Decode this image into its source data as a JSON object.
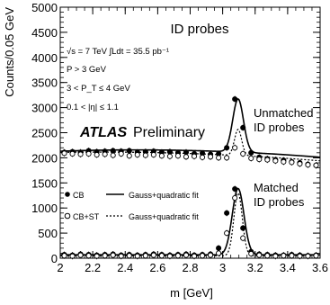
{
  "chart_data": {
    "type": "scatter",
    "title": "ID probes",
    "xlabel": "m [GeV]",
    "ylabel": "Counts/0.05 GeV",
    "xlim": [
      2.0,
      3.6
    ],
    "ylim": [
      0,
      5000
    ],
    "x_ticks": [
      "2",
      "2.2",
      "2.4",
      "2.6",
      "2.8",
      "3",
      "3.2",
      "3.4",
      "3.6"
    ],
    "y_ticks": [
      "0",
      "500",
      "1000",
      "1500",
      "2000",
      "2500",
      "3000",
      "3500",
      "4000",
      "4500",
      "5000"
    ],
    "atlas_label": "ATLAS",
    "preliminary_label": "Preliminary",
    "info_lines": [
      "√s = 7 TeV  ∫Ldt = 35.5 pb⁻¹",
      "P > 3 GeV",
      "3 < P_T ≤ 4 GeV",
      "0.1 < |η| ≤ 1.1"
    ],
    "group_labels": {
      "unmatched": [
        "Unmatched",
        "ID probes"
      ],
      "matched": [
        "Matched",
        "ID probes"
      ]
    },
    "legend": [
      {
        "marker": "filled-circle",
        "label": "CB",
        "line": "solid",
        "line_label": "Gauss+quadratic fit"
      },
      {
        "marker": "open-circle",
        "label": "CB+ST",
        "line": "dotted",
        "line_label": "Gauss+quadratic fit"
      }
    ],
    "x": [
      2.025,
      2.075,
      2.125,
      2.175,
      2.225,
      2.275,
      2.325,
      2.375,
      2.425,
      2.475,
      2.525,
      2.575,
      2.625,
      2.675,
      2.725,
      2.775,
      2.825,
      2.875,
      2.925,
      2.975,
      3.025,
      3.075,
      3.125,
      3.175,
      3.225,
      3.275,
      3.325,
      3.375,
      3.425,
      3.475,
      3.525,
      3.575
    ],
    "series": [
      {
        "group": "unmatched",
        "marker": "filled",
        "values": [
          2110,
          2120,
          2110,
          2140,
          2120,
          2130,
          2140,
          2130,
          2140,
          2110,
          2120,
          2130,
          2110,
          2120,
          2100,
          2110,
          2080,
          2090,
          2070,
          2080,
          2200,
          3170,
          2600,
          2100,
          2010,
          1980,
          1960,
          1950,
          1920,
          1900,
          1870,
          1850
        ]
      },
      {
        "group": "unmatched",
        "marker": "open",
        "values": [
          2090,
          2080,
          2070,
          2080,
          2060,
          2070,
          2050,
          2080,
          2040,
          2060,
          2050,
          2060,
          2040,
          2030,
          2040,
          2020,
          2030,
          2010,
          2020,
          2000,
          2000,
          2200,
          2080,
          1990,
          1970,
          1960,
          1940,
          1920,
          1910,
          1880,
          1860,
          1850
        ]
      },
      {
        "group": "matched",
        "marker": "filled",
        "values": [
          70,
          60,
          80,
          70,
          60,
          70,
          80,
          60,
          70,
          60,
          70,
          80,
          70,
          60,
          70,
          80,
          60,
          70,
          80,
          200,
          900,
          1380,
          600,
          130,
          80,
          70,
          60,
          60,
          70,
          60,
          50,
          60
        ]
      },
      {
        "group": "matched",
        "marker": "open",
        "values": [
          50,
          40,
          60,
          50,
          40,
          50,
          60,
          40,
          50,
          40,
          50,
          60,
          50,
          40,
          50,
          60,
          40,
          50,
          60,
          100,
          500,
          1200,
          400,
          90,
          60,
          50,
          40,
          50,
          50,
          40,
          40,
          50
        ]
      }
    ],
    "fits": [
      {
        "group": "unmatched",
        "style": "solid",
        "a": 2145,
        "b": -75,
        "c": -115,
        "amp": 1060,
        "mu": 3.095,
        "sigma": 0.033
      },
      {
        "group": "unmatched",
        "style": "dotted",
        "a": 2085,
        "b": -105,
        "c": -95,
        "amp": 520,
        "mu": 3.095,
        "sigma": 0.022
      },
      {
        "group": "matched",
        "style": "solid",
        "a": 68,
        "b": 0,
        "c": 0,
        "amp": 1320,
        "mu": 3.095,
        "sigma": 0.036
      },
      {
        "group": "matched",
        "style": "dotted",
        "a": 48,
        "b": 0,
        "c": 0,
        "amp": 1250,
        "mu": 3.095,
        "sigma": 0.026
      }
    ]
  }
}
